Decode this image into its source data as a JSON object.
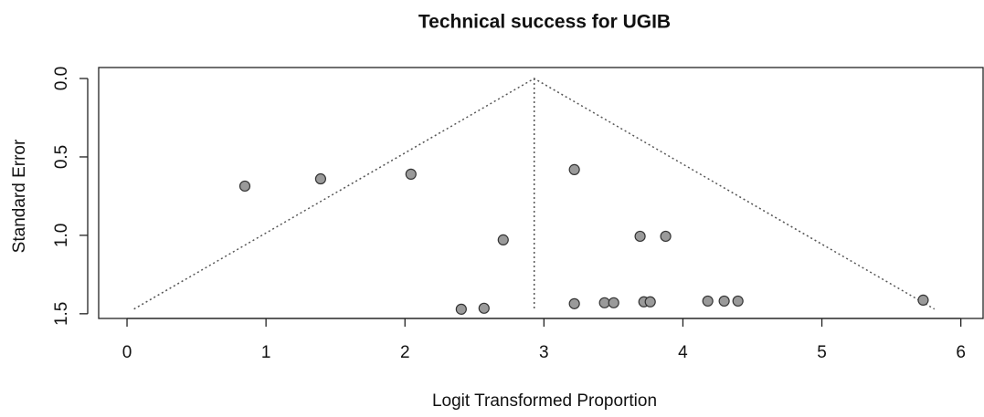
{
  "chart_data": {
    "type": "scatter",
    "title": "Technical success for UGIB",
    "x_label": "Logit Transformed Proportion",
    "y_label": "Standard Error",
    "x": [
      0.848,
      1.393,
      2.043,
      3.219,
      2.707,
      3.692,
      3.876,
      2.405,
      2.569,
      3.219,
      3.436,
      3.502,
      3.719,
      3.765,
      4.179,
      4.297,
      4.396,
      5.729
    ],
    "values": [
      0.686,
      0.64,
      0.61,
      0.581,
      1.029,
      1.006,
      1.006,
      1.471,
      1.465,
      1.436,
      1.43,
      1.43,
      1.424,
      1.424,
      1.419,
      1.419,
      1.419,
      1.413
    ],
    "color": "#9a9a9a",
    "xlim": [
      -0.204,
      6.16
    ],
    "ylim": [
      -0.07,
      1.53
    ],
    "y_inverted": true,
    "xticks": [
      0,
      1,
      2,
      3,
      4,
      5,
      6
    ],
    "yticks": [
      {
        "value": 0,
        "label": "0.0"
      },
      0.5,
      {
        "value": 1,
        "label": "1.0"
      },
      1.5
    ],
    "funnel_lines": {
      "x": [
        0.05,
        2.93,
        5.81
      ],
      "y": [
        1.47,
        0,
        1.47
      ]
    },
    "center_line": {
      "x": 2.93,
      "y": [
        0,
        1.47
      ]
    }
  }
}
